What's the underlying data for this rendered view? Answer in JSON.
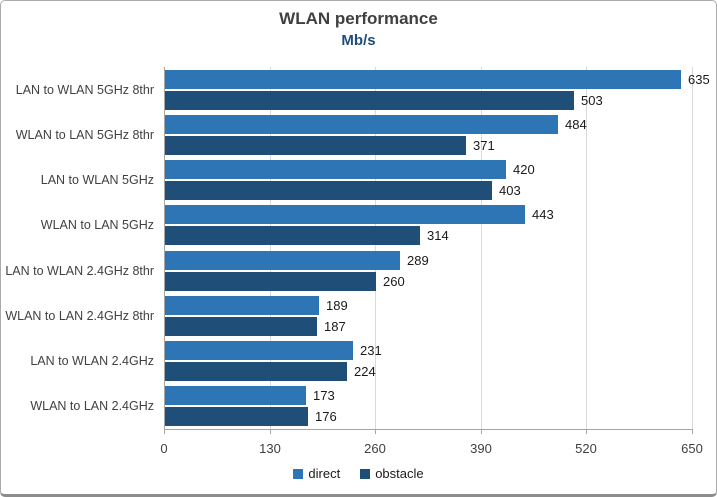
{
  "window": {
    "background_color": "#ffffff",
    "border_color": "#ababab"
  },
  "chart_data": {
    "type": "bar",
    "orientation": "horizontal",
    "title": "WLAN performance",
    "subtitle": "Mb/s",
    "categories": [
      "LAN to WLAN 5GHz 8thr",
      "WLAN to LAN 5GHz 8thr",
      "LAN to WLAN 5GHz",
      "WLAN to LAN 5GHz",
      "LAN to WLAN 2.4GHz 8thr",
      "WLAN to LAN 2.4GHz 8thr",
      "LAN to WLAN 2.4GHz",
      "WLAN to LAN 2.4GHz"
    ],
    "series": [
      {
        "name": "direct",
        "color": "#2e75b6",
        "values": [
          635,
          484,
          420,
          443,
          289,
          189,
          231,
          173
        ]
      },
      {
        "name": "obstacle",
        "color": "#1f4e79",
        "values": [
          503,
          371,
          403,
          314,
          260,
          187,
          224,
          176
        ]
      }
    ],
    "xlim": [
      0,
      650
    ],
    "x_ticks": [
      0,
      130,
      260,
      390,
      520,
      650
    ],
    "grid": "vertical-only",
    "gridline_color": "#d9d9d9",
    "axis_color": "#a6a6a6",
    "value_labels_shown": true,
    "legend_position": "bottom-center",
    "title_color": "#404040",
    "subtitle_color": "#1f4e79",
    "label_color": "#404040",
    "value_label_color": "#1a1a1a"
  }
}
